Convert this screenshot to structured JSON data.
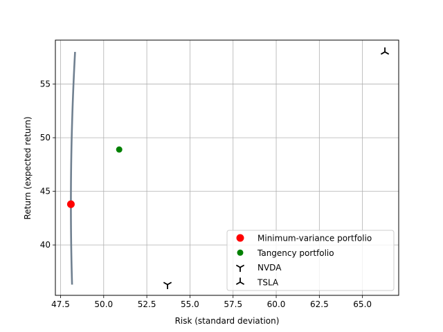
{
  "chart_data": {
    "type": "scatter",
    "xlabel": "Risk (standard deviation)",
    "ylabel": "Return (expected return)",
    "xlim": [
      47.2,
      67.1
    ],
    "ylim": [
      35.3,
      59.1
    ],
    "xticks": [
      "47.5",
      "50.0",
      "52.5",
      "55.0",
      "57.5",
      "60.0",
      "62.5",
      "65.0"
    ],
    "xtick_values": [
      47.5,
      50.0,
      52.5,
      55.0,
      57.5,
      60.0,
      62.5,
      65.0
    ],
    "yticks": [
      "40",
      "45",
      "50",
      "55"
    ],
    "ytick_values": [
      40,
      45,
      50,
      55
    ],
    "grid": true,
    "legend_position": "bottom-right",
    "frontier": {
      "color": "#708090",
      "min_variance": {
        "risk": 48.1,
        "return": 43.8
      },
      "curvature": 0.1153,
      "return_range": [
        36.3,
        58.0
      ]
    },
    "series": [
      {
        "name": "Minimum-variance portfolio",
        "marker": "circle",
        "color": "#ff0000",
        "points": [
          [
            48.1,
            43.8
          ]
        ]
      },
      {
        "name": "Tangency portfolio",
        "marker": "circle",
        "color": "#008000",
        "points": [
          [
            50.9,
            48.9
          ]
        ]
      },
      {
        "name": "NVDA",
        "marker": "tri_down",
        "color": "#000000",
        "points": [
          [
            53.7,
            36.3
          ]
        ]
      },
      {
        "name": "TSLA",
        "marker": "tri_up",
        "color": "#000000",
        "points": [
          [
            66.3,
            58.0
          ]
        ]
      }
    ]
  }
}
